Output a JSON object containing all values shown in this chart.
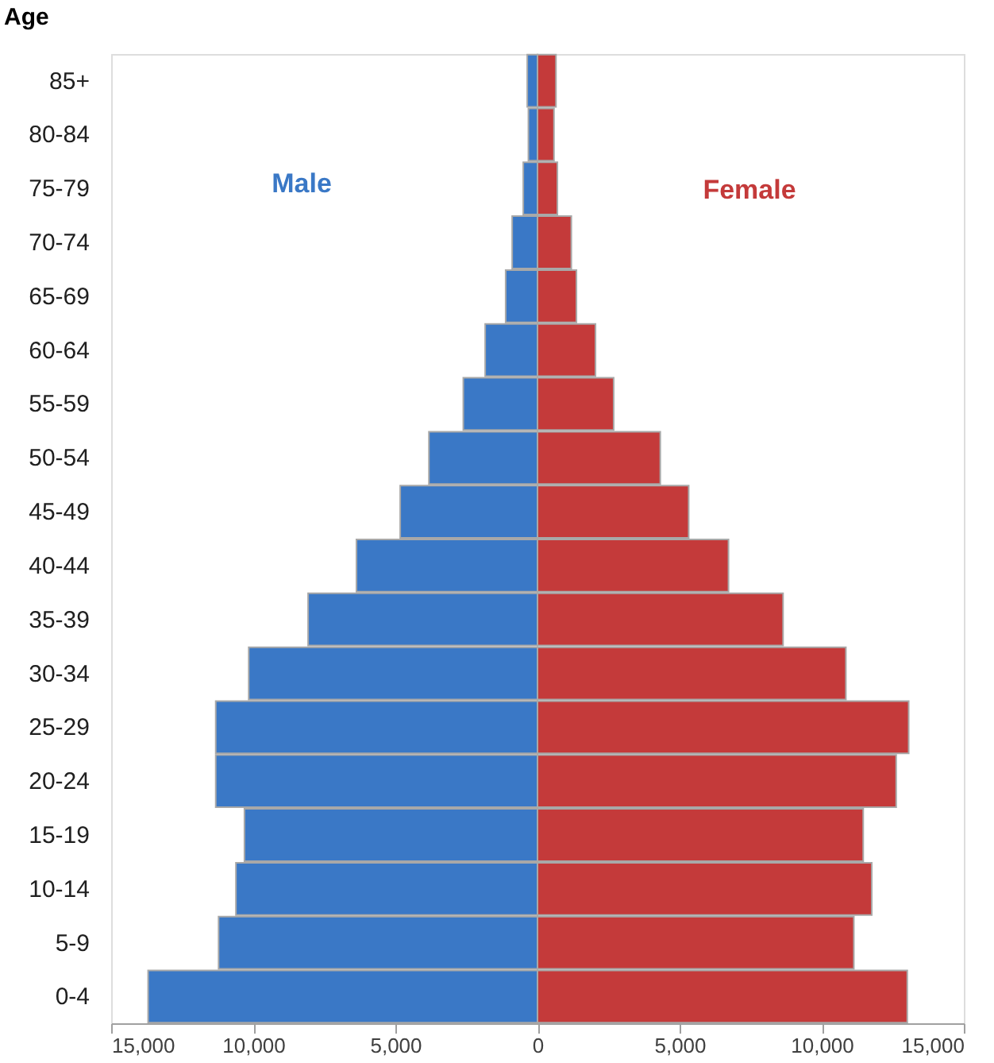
{
  "chart_data": {
    "type": "bar",
    "orientation": "horizontal",
    "stacked": true,
    "ylabel": "Age",
    "categories": [
      "85+",
      "80-84",
      "75-79",
      "70-74",
      "65-69",
      "60-64",
      "55-59",
      "50-54",
      "45-49",
      "40-44",
      "35-39",
      "30-34",
      "25-29",
      "20-24",
      "15-19",
      "10-14",
      "5-9",
      "0-4"
    ],
    "series": [
      {
        "name": "Male",
        "color": "#3a78c6",
        "values": [
          -360,
          -320,
          -500,
          -890,
          -1120,
          -1840,
          -2610,
          -3820,
          -4830,
          -6370,
          -8070,
          -10160,
          -11320,
          -11320,
          -10310,
          -10610,
          -11220,
          -13700
        ]
      },
      {
        "name": "Female",
        "color": "#c43a3a",
        "values": [
          650,
          580,
          700,
          1190,
          1370,
          2040,
          2680,
          4320,
          5320,
          6720,
          8640,
          10850,
          13060,
          12620,
          11460,
          11760,
          11130,
          13010
        ]
      }
    ],
    "xlim": [
      -15000,
      15000
    ],
    "xticks": [
      {
        "value": -15000,
        "label": "15,000"
      },
      {
        "value": -10000,
        "label": "10,000"
      },
      {
        "value": -5000,
        "label": "5,000"
      },
      0,
      {
        "value": 5000,
        "label": "5,000"
      },
      {
        "value": 10000,
        "label": "10,000"
      },
      {
        "value": 15000,
        "label": "15,000"
      }
    ],
    "grid": false,
    "legend": false
  }
}
